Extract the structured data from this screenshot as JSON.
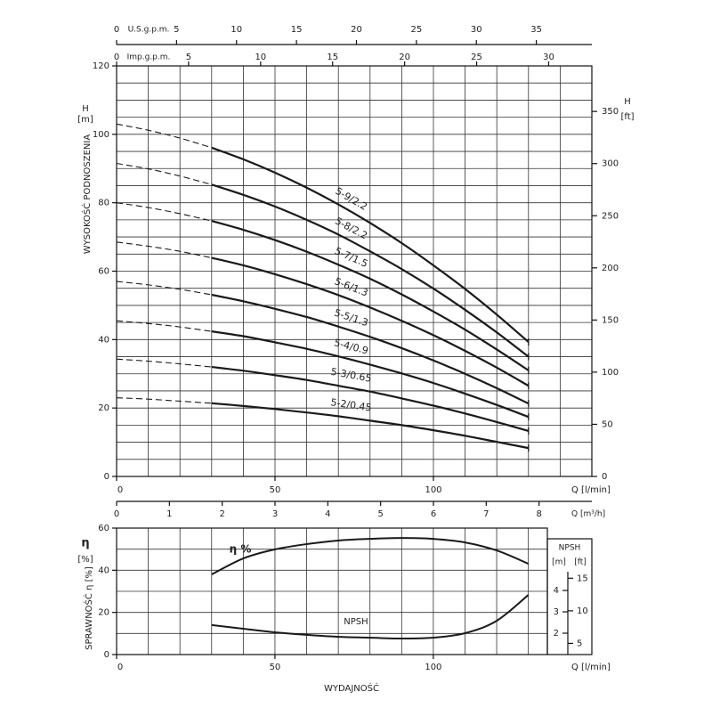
{
  "chart_data": [
    {
      "type": "line",
      "x": [
        0,
        10,
        20,
        30,
        40,
        50,
        60,
        70,
        80,
        90,
        100,
        110,
        120,
        130
      ],
      "xlim": [
        0,
        150
      ],
      "xticks": [
        0,
        50,
        100
      ],
      "xlabel": "Q [l/min]",
      "ylim": [
        0,
        120
      ],
      "yticks": [
        0,
        20,
        40,
        60,
        80,
        100,
        120
      ],
      "ylabel": "H",
      "yunit": "[m]",
      "ytitle": "WYSOKOŚĆ PODNOSZENIA",
      "y2lim": [
        0,
        393.7
      ],
      "y2ticks": [
        0,
        50,
        100,
        150,
        200,
        250,
        300,
        350
      ],
      "y2label": "H",
      "y2unit": "[ft]",
      "dashed_until": 30,
      "grid": {
        "x": 10,
        "y": 5
      },
      "secondary_x": [
        {
          "label": "U.S.g.p.m.",
          "lim": [
            0,
            39.63
          ],
          "ticks": [
            0,
            5,
            10,
            15,
            20,
            25,
            30,
            35
          ]
        },
        {
          "label": "Imp.g.p.m.",
          "lim": [
            0,
            33
          ],
          "ticks": [
            0,
            5,
            10,
            15,
            20,
            25,
            30
          ]
        },
        {
          "label": "Q [m³/h]",
          "lim": [
            0,
            9
          ],
          "ticks": [
            0,
            1,
            2,
            3,
            4,
            5,
            6,
            7,
            8
          ]
        }
      ],
      "color": "#1a1a1a",
      "series": [
        {
          "name": "5-9/2.2",
          "values": [
            103,
            101.2,
            98.9,
            96.1,
            92.7,
            88.8,
            84.4,
            79.5,
            74.1,
            68.2,
            61.7,
            54.8,
            47.3,
            39.3
          ]
        },
        {
          "name": "5-8/2.2",
          "values": [
            91.5,
            89.9,
            87.8,
            85.3,
            82.3,
            78.9,
            75.0,
            70.7,
            65.8,
            60.6,
            54.9,
            48.7,
            42.1,
            35
          ]
        },
        {
          "name": "5-7/1.5",
          "values": [
            80,
            78.6,
            76.8,
            74.7,
            72.1,
            69.1,
            65.7,
            61.9,
            57.8,
            53.2,
            48.2,
            42.9,
            37.1,
            31
          ]
        },
        {
          "name": "5-6/1.3",
          "values": [
            68.5,
            67.3,
            65.8,
            63.9,
            61.7,
            59.1,
            56.2,
            53.0,
            49.4,
            45.5,
            41.3,
            36.7,
            31.8,
            26.5
          ]
        },
        {
          "name": "5-5/1.3",
          "values": [
            57,
            56.0,
            54.7,
            53.1,
            51.2,
            49.0,
            46.6,
            43.8,
            40.8,
            37.5,
            33.9,
            30.0,
            25.8,
            21.3
          ]
        },
        {
          "name": "5-4/0.9",
          "values": [
            45.5,
            44.7,
            43.7,
            42.4,
            41.0,
            39.2,
            37.3,
            35.1,
            32.7,
            30.1,
            27.3,
            24.2,
            20.9,
            17.4
          ]
        },
        {
          "name": "5-3/0.65",
          "values": [
            34.3,
            33.7,
            32.9,
            32.0,
            30.9,
            29.6,
            28.2,
            26.5,
            24.8,
            22.8,
            20.7,
            18.4,
            15.9,
            13.3
          ]
        },
        {
          "name": "5-2/0.45",
          "values": [
            23,
            22.6,
            22.0,
            21.4,
            20.6,
            19.7,
            18.7,
            17.6,
            16.3,
            15.0,
            13.5,
            11.9,
            10.1,
            8.3
          ]
        }
      ]
    },
    {
      "type": "line",
      "x": [
        30,
        40,
        50,
        60,
        70,
        80,
        90,
        100,
        110,
        120,
        130
      ],
      "xlim": [
        0,
        136
      ],
      "xticks": [
        0,
        50,
        100
      ],
      "xlabel": "Q [l/min]",
      "xtitle": "WYDAJNOŚĆ",
      "ylim": [
        0,
        60
      ],
      "yticks": [
        0,
        20,
        40,
        60
      ],
      "ylabel": "η",
      "yunit": "[%]",
      "ytitle": "SPRAWNOŚĆ η [%]",
      "y2lim": [
        1,
        6.92
      ],
      "y2ticks": [
        2,
        3,
        4
      ],
      "y2label": "NPSH",
      "y2unit": "[m]",
      "y3lim": [
        3.28,
        22.7
      ],
      "y3ticks": [
        5,
        10,
        15
      ],
      "y3unit": "[ft]",
      "grid": {
        "x": 10,
        "y": 10
      },
      "color": "#1a1a1a",
      "series": [
        {
          "name": "η %",
          "values": [
            38,
            45.6,
            49.9,
            52.4,
            54.1,
            54.9,
            55.3,
            54.9,
            53.2,
            49.4,
            43.1
          ]
        },
        {
          "name": "NPSH",
          "axis": "y2",
          "values": [
            2.38,
            2.21,
            2.04,
            1.92,
            1.83,
            1.79,
            1.75,
            1.79,
            2.0,
            2.58,
            3.79
          ]
        }
      ]
    }
  ]
}
